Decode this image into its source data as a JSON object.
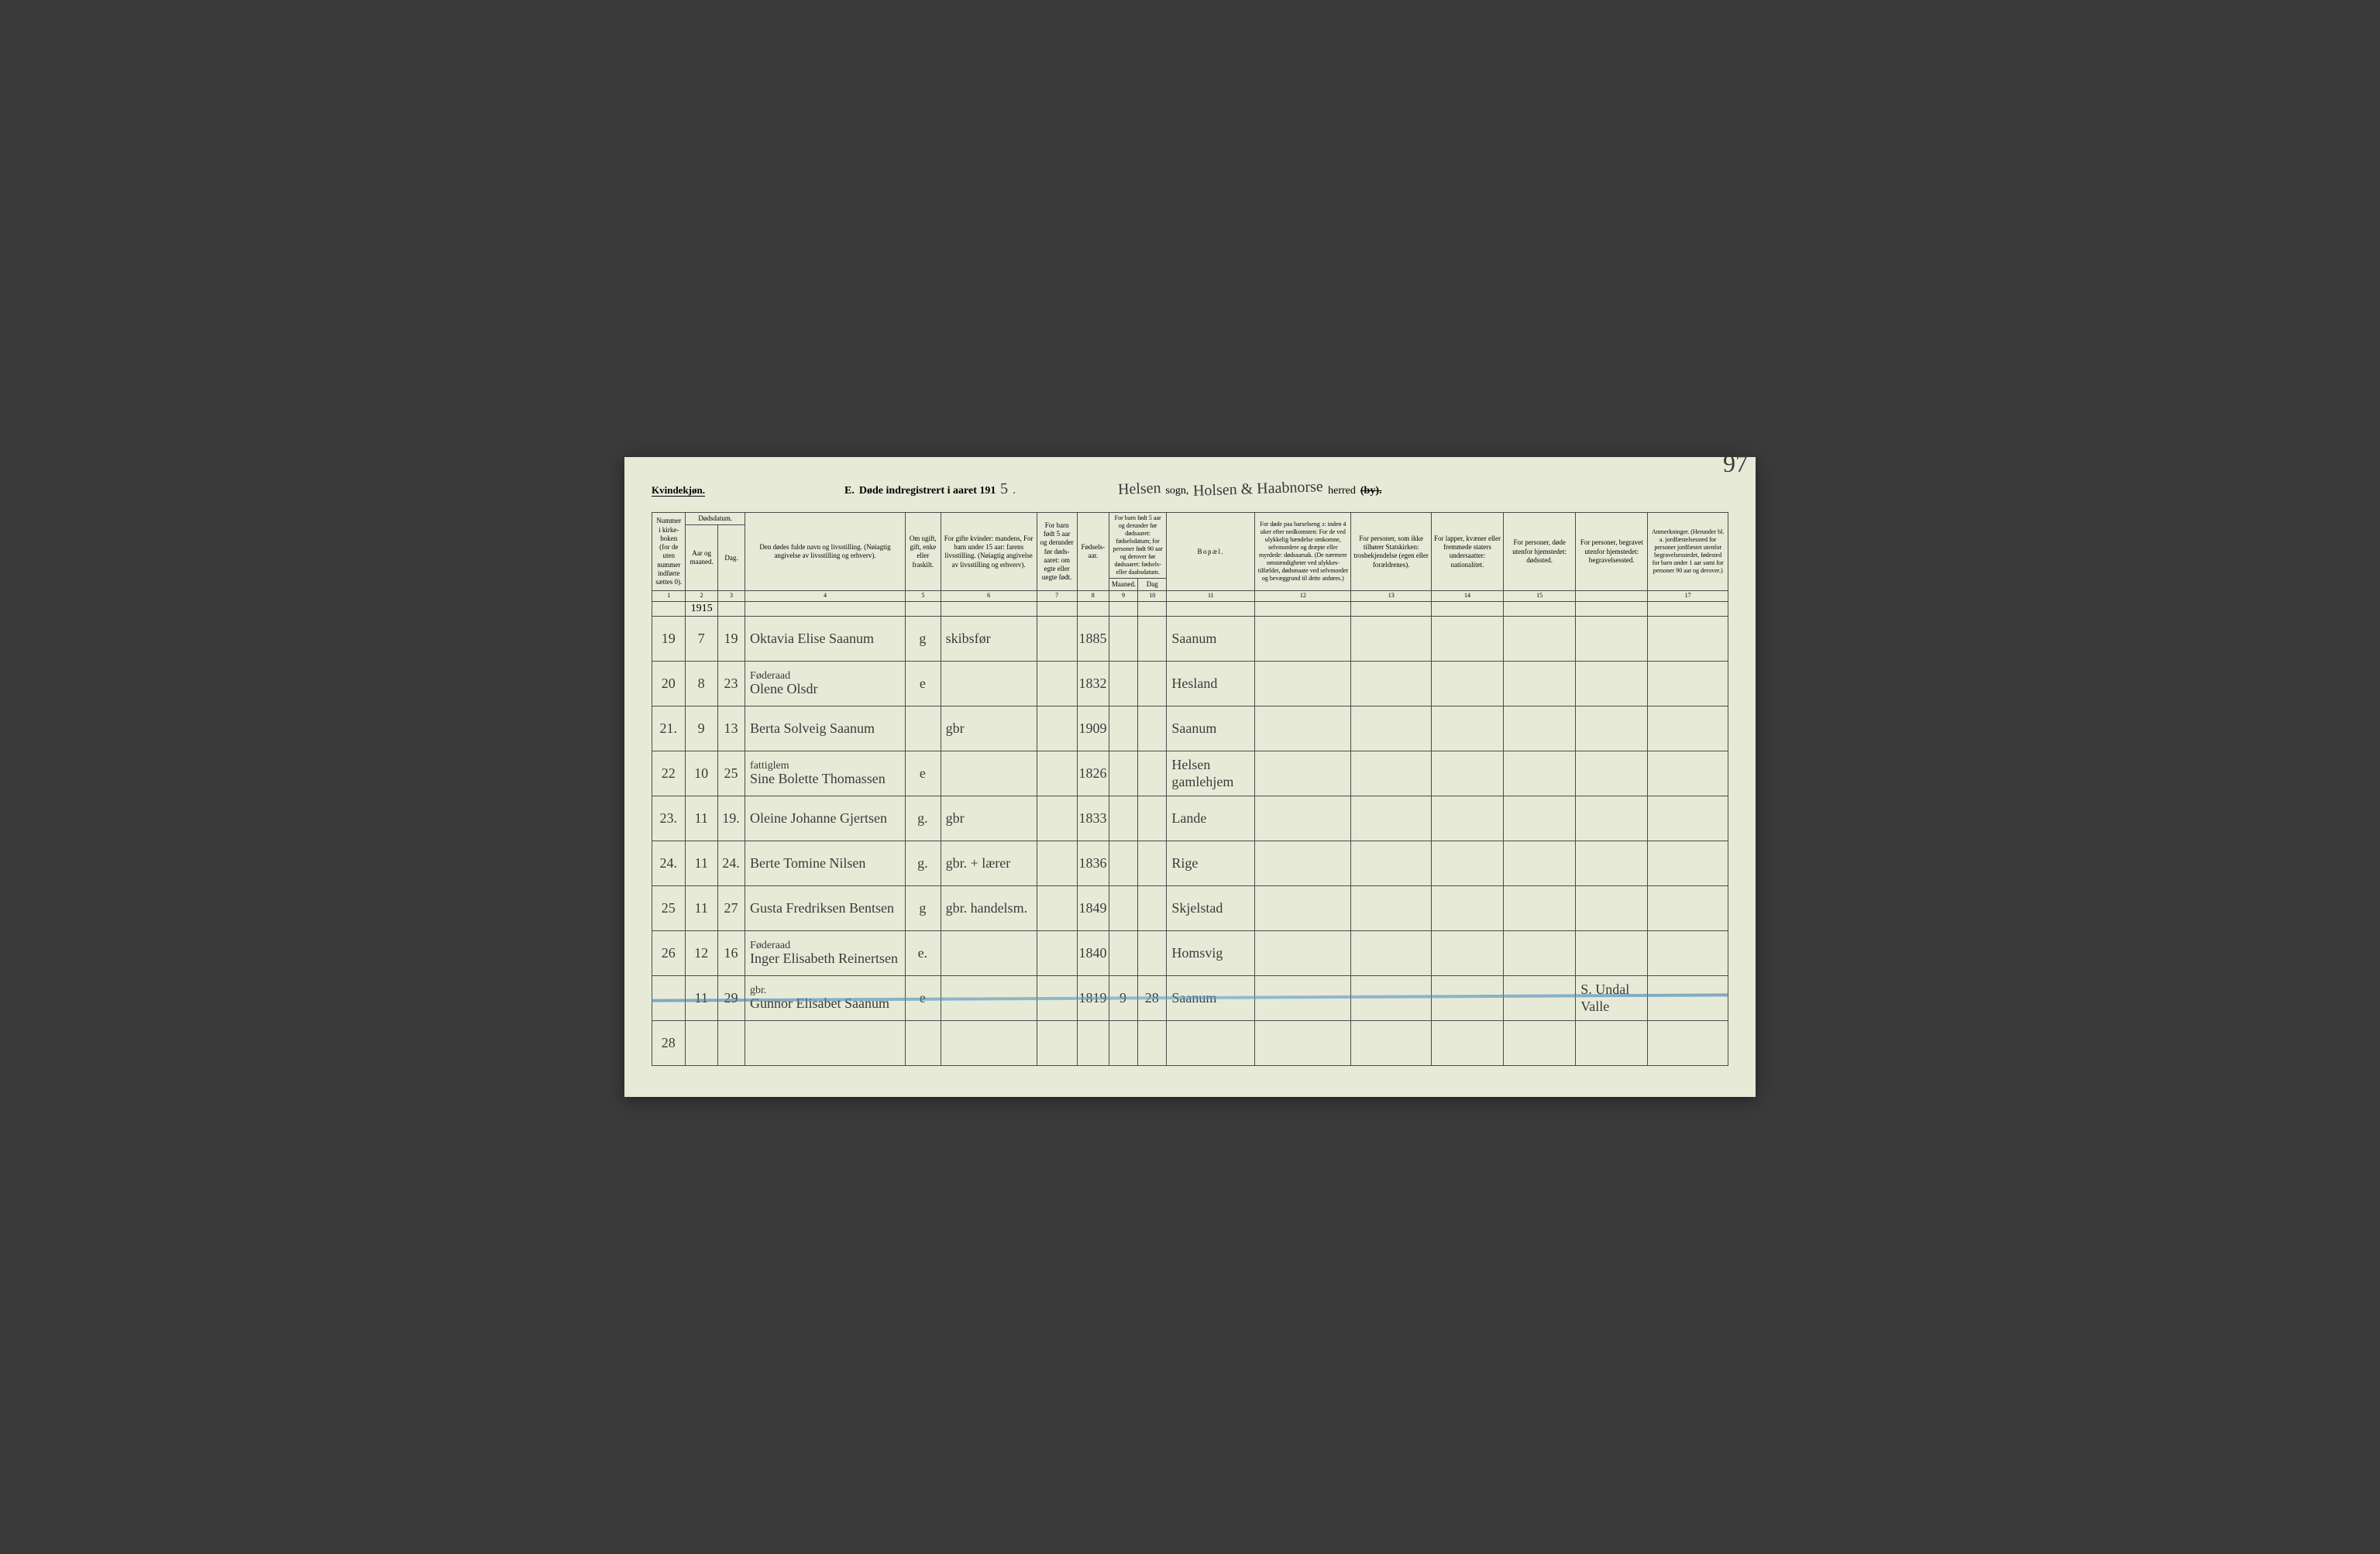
{
  "colors": {
    "page_bg": "#e8ead8",
    "ink": "#3a3a3a",
    "border": "#4a4a4a",
    "blue_pencil": "#3a7fb0",
    "outer_bg": "#3a3a3a"
  },
  "typography": {
    "print_family": "Georgia, Times New Roman, serif",
    "handwritten_family": "Brush Script MT, cursive",
    "header_fontsize_pt": 10,
    "body_handwriting_fontsize_pt": 14
  },
  "page_number": "97",
  "header": {
    "gender_label": "Kvindekjøn.",
    "section_letter": "E.",
    "title_prefix": "Døde indregistrert i aaret 191",
    "year_suffix_handwritten": "5",
    "period": ".",
    "sogn_value": "Helsen",
    "sogn_label": "sogn,",
    "herred_value": "Holsen & Haabnorse",
    "herred_label": "herred",
    "by_struck": "(by)."
  },
  "columns": {
    "c1": "Nummer i kirke­boken (for de uten nummer indførte sættes 0).",
    "c2_group": "Dødsdatum.",
    "c2a": "Aar og maaned.",
    "c2b": "Dag.",
    "c4": "Den dødes fulde navn og livsstilling.\n(Nøiagtig angivelse av livsstilling og erhverv).",
    "c5": "Om ugift, gift, enke eller fraskilt.",
    "c6": "For gifte kvinder:\nmandens,\nFor barn under 15 aar:\nfarens livsstilling.\n(Nøiagtig angivelse av livsstilling og erhverv).",
    "c7": "For barn født 5 aar og derunder før døds­aaret: om egte eller uegte født.",
    "c8": "Fødsels­aar.",
    "c9_group": "For barn født 5 aar og der­under før dødsaaret: fødselsdatum; for personer født 90 aar og derover før dødsaaret: fødsels- eller daabsdatum.",
    "c9a": "Maaned.",
    "c9b": "Dag",
    "c11": "Bopæl.",
    "c12": "For døde paa barselseng ɔ: inden 4 uker efter nedkomsten:\nFor de ved ulykkelig hændelse omkomne, selvmordere og dræpte eller myrdede: dødsaarsak.\n(De nærmere omstæn­digheter ved ulykkes­tilfældet, dødsmaate ved selvmordet og bevæggrund til dette anføres.)",
    "c13": "For personer, som ikke tilhører Statskirken:\ntrosbekjendelse (egen eller forældrenes).",
    "c14": "For lapper, kvæner eller fremmede staters undersaatter:\nnationalitet.",
    "c15": "For personer, døde utenfor hjemstedet:\ndødssted.",
    "c16": "For personer, begravet utenfor hjemstedet:\nbegravelsessted.",
    "c17": "Anmerkninger.\n(Herunder bl. a. jordfæstelsessted for personer jordfæstet utenfor begravelses­stedet, fødested for barn under 1 aar samt for personer 90 aar og derover.)"
  },
  "colnums": [
    "1",
    "2",
    "3",
    "4",
    "5",
    "6",
    "7",
    "8",
    "9",
    "10",
    "11",
    "12",
    "13",
    "14",
    "15",
    "",
    "17"
  ],
  "year_annotation": "1915",
  "rows": [
    {
      "n": "19",
      "mo": "7",
      "day": "19",
      "name": "Oktavia Elise Saanum",
      "status": "g",
      "occ": "skibsfør",
      "egte": "",
      "birth": "1885",
      "bm": "",
      "bd": "",
      "place": "Saanum"
    },
    {
      "n": "20",
      "mo": "8",
      "day": "23",
      "name_note": "Føderaad",
      "name": "Olene Olsdr",
      "status": "e",
      "occ": "",
      "egte": "",
      "birth": "1832",
      "bm": "",
      "bd": "",
      "place": "Hesland"
    },
    {
      "n": "21.",
      "mo": "9",
      "day": "13",
      "name": "Berta Solveig Saanum",
      "status": "",
      "occ": "gbr",
      "egte": "",
      "birth": "1909",
      "bm": "",
      "bd": "",
      "place": "Saanum"
    },
    {
      "n": "22",
      "mo": "10",
      "day": "25",
      "name_note": "fattiglem",
      "name": "Sine Bolette Thomassen",
      "status": "e",
      "occ": "",
      "egte": "",
      "birth": "1826",
      "bm": "",
      "bd": "",
      "place": "Helsen gamlehjem"
    },
    {
      "n": "23.",
      "mo": "11",
      "day": "19.",
      "name": "Oleine Johanne Gjertsen",
      "status": "g.",
      "occ": "gbr",
      "egte": "",
      "birth": "1833",
      "bm": "",
      "bd": "",
      "place": "Lande"
    },
    {
      "n": "24.",
      "mo": "11",
      "day": "24.",
      "name": "Berte Tomine Nilsen",
      "status": "g.",
      "occ": "gbr. + lærer",
      "egte": "",
      "birth": "1836",
      "bm": "",
      "bd": "",
      "place": "Rige"
    },
    {
      "n": "25",
      "mo": "11",
      "day": "27",
      "name": "Gusta Fredriksen Bentsen",
      "status": "g",
      "occ": "gbr. handelsm.",
      "egte": "",
      "birth": "1849",
      "bm": "",
      "bd": "",
      "place": "Skjelstad"
    },
    {
      "n": "26",
      "mo": "12",
      "day": "16",
      "name_note": "Føderaad",
      "name": "Inger Elisabeth Reinertsen",
      "status": "e.",
      "occ": "",
      "egte": "",
      "birth": "1840",
      "bm": "",
      "bd": "",
      "place": "Homsvig"
    },
    {
      "n": "",
      "mo": "11",
      "day": "29",
      "name_note": "gbr.",
      "name": "Gunnor Elisabet Saanum",
      "status": "e",
      "occ": "",
      "egte": "",
      "birth": "1819",
      "bm": "9",
      "bd": "28",
      "place": "Saanum",
      "crossed": true,
      "c16": "S. Undal Valle"
    },
    {
      "n": "28",
      "mo": "",
      "day": "",
      "name": "",
      "status": "",
      "occ": "",
      "egte": "",
      "birth": "",
      "bm": "",
      "bd": "",
      "place": ""
    }
  ]
}
